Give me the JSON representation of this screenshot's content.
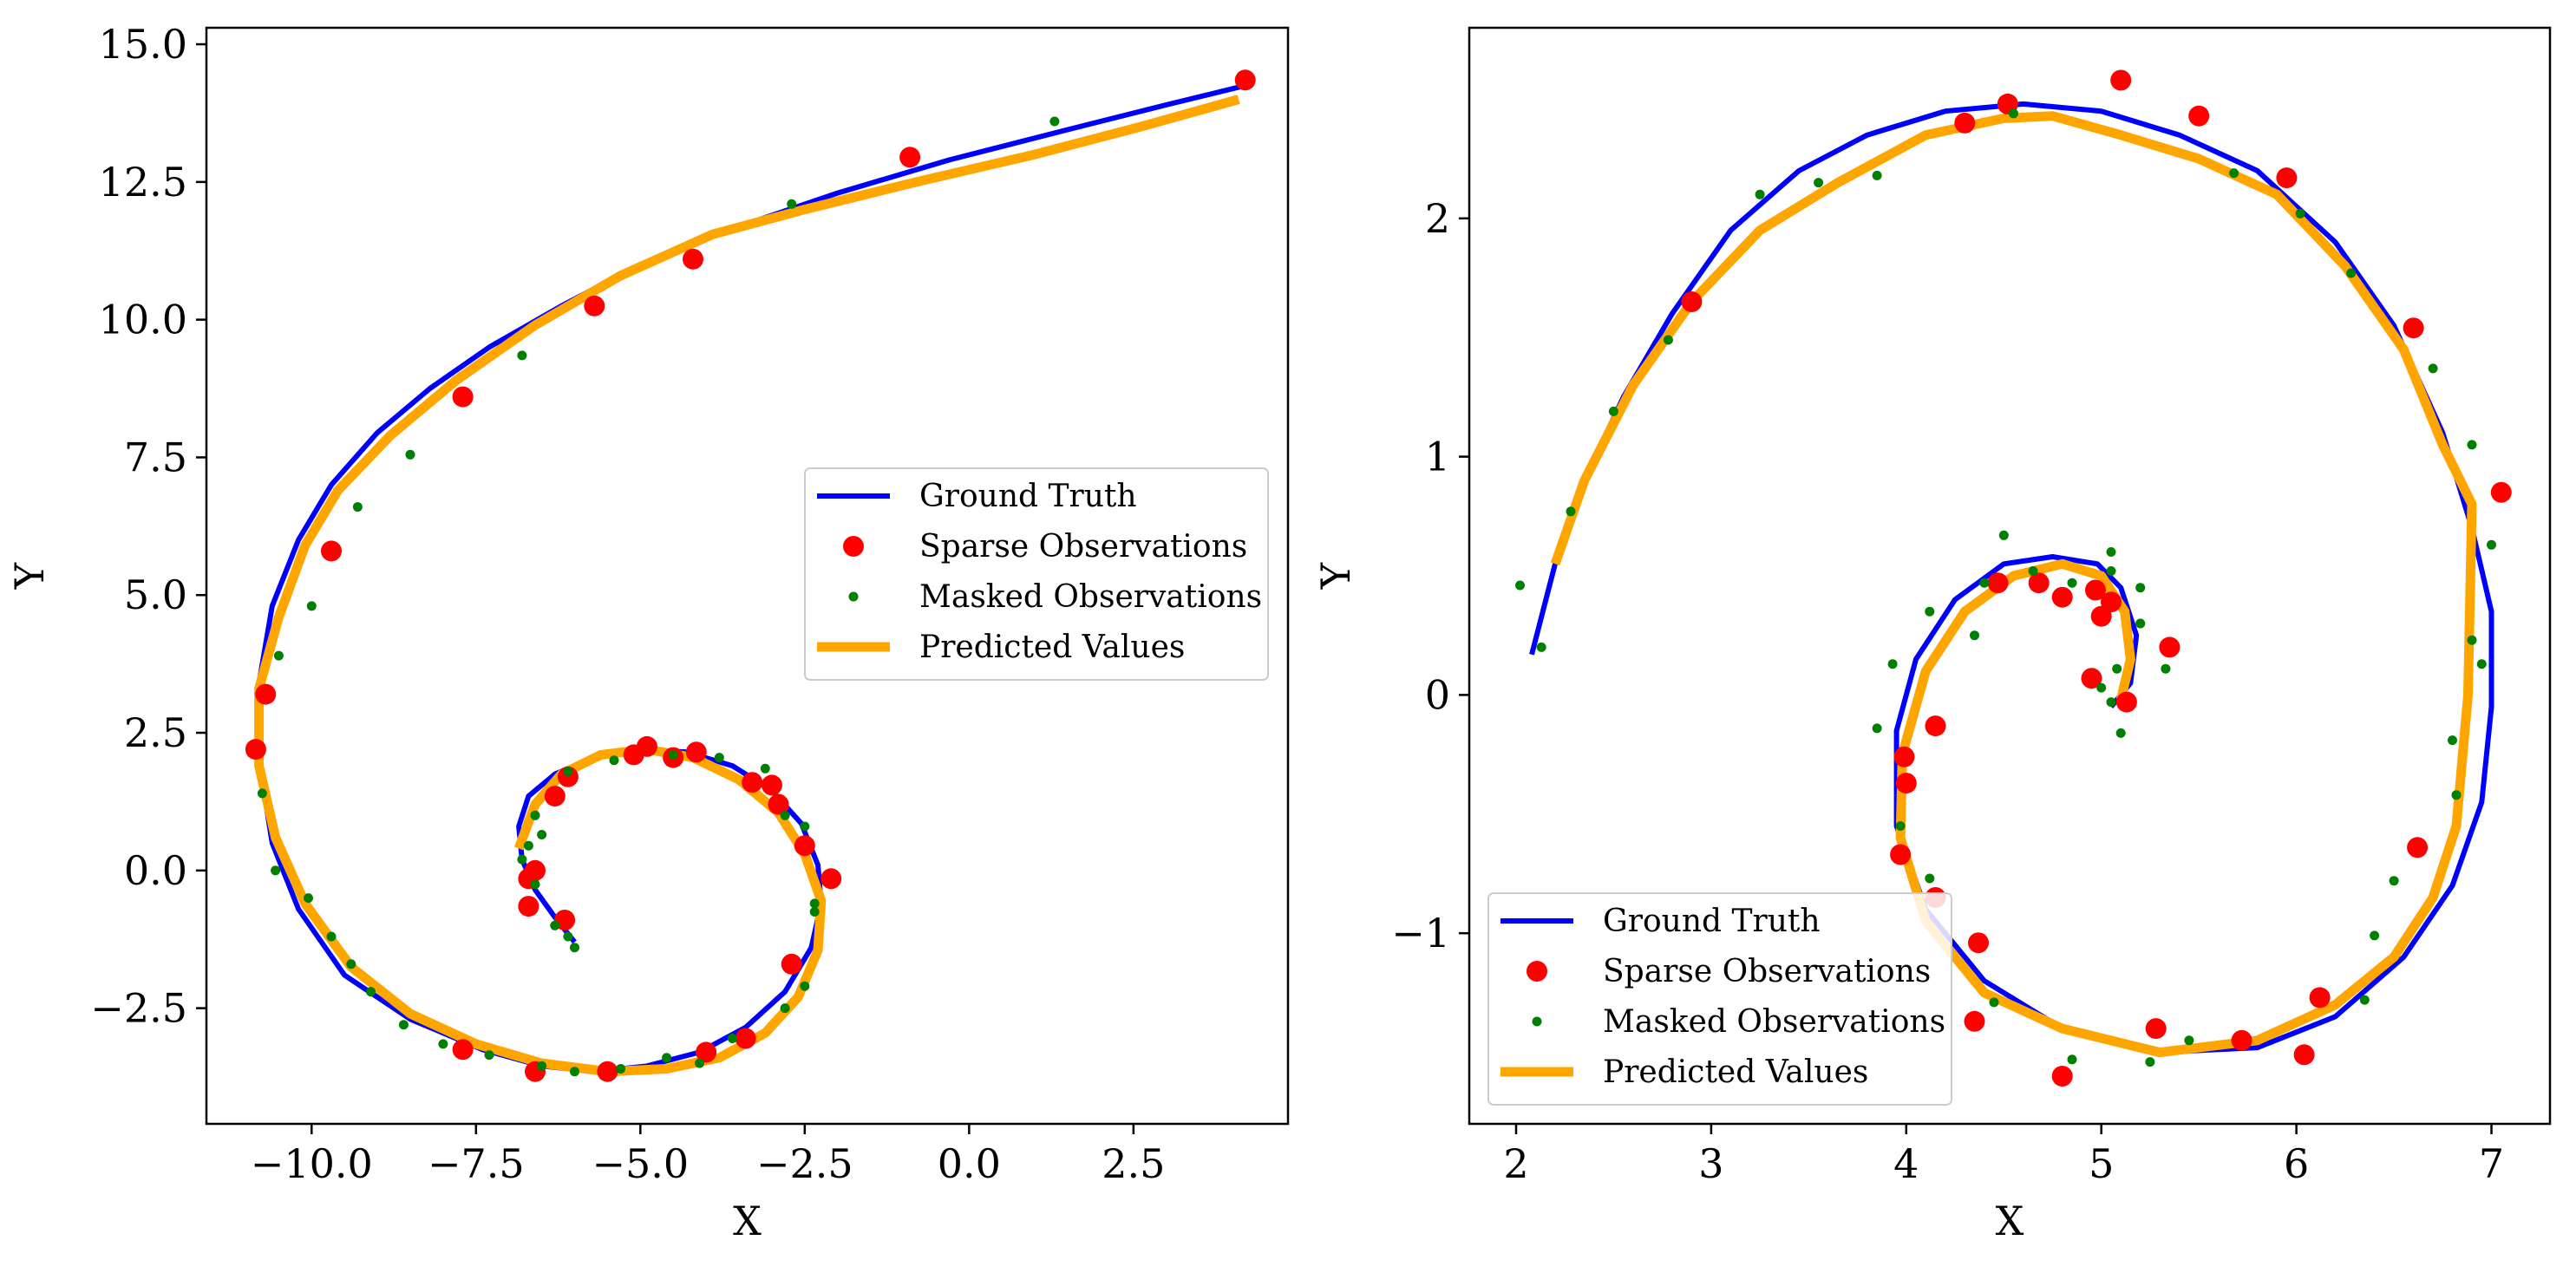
{
  "chart_data": [
    {
      "type": "line",
      "xlabel": "X",
      "ylabel": "Y",
      "xlim": [
        -11.6,
        4.85
      ],
      "ylim": [
        -4.6,
        15.3
      ],
      "xticks": [
        {
          "v": -10.0,
          "label": "−10.0"
        },
        {
          "v": -7.5,
          "label": "−7.5"
        },
        {
          "v": -5.0,
          "label": "−5.0"
        },
        {
          "v": -2.5,
          "label": "−2.5"
        },
        {
          "v": 0.0,
          "label": "0.0"
        },
        {
          "v": 2.5,
          "label": "2.5"
        }
      ],
      "yticks": [
        {
          "v": -2.5,
          "label": "−2.5"
        },
        {
          "v": 0.0,
          "label": "0.0"
        },
        {
          "v": 2.5,
          "label": "2.5"
        },
        {
          "v": 5.0,
          "label": "5.0"
        },
        {
          "v": 7.5,
          "label": "7.5"
        },
        {
          "v": 10.0,
          "label": "10.0"
        },
        {
          "v": 12.5,
          "label": "12.5"
        },
        {
          "v": 15.0,
          "label": "15.0"
        }
      ],
      "legend_position": "center-right",
      "legend": [
        "Ground Truth",
        "Sparse Observations",
        "Masked Observations",
        "Predicted Values"
      ],
      "series": [
        {
          "name": "Ground Truth",
          "kind": "line",
          "color": "#0000ff",
          "x": [
            -6.0,
            -6.3,
            -6.6,
            -6.8,
            -6.85,
            -6.7,
            -6.3,
            -5.7,
            -5.0,
            -4.3,
            -3.6,
            -3.0,
            -2.55,
            -2.3,
            -2.25,
            -2.4,
            -2.8,
            -3.4,
            -4.1,
            -4.9,
            -5.7,
            -6.5,
            -7.4,
            -8.5,
            -9.5,
            -10.2,
            -10.6,
            -10.8,
            -10.8,
            -10.6,
            -10.2,
            -9.7,
            -9.0,
            -8.2,
            -7.3,
            -6.2,
            -5.0,
            -3.6,
            -2.0,
            -0.3,
            1.5,
            3.0,
            4.2
          ],
          "y": [
            -1.3,
            -0.85,
            -0.35,
            0.2,
            0.8,
            1.35,
            1.75,
            2.05,
            2.2,
            2.15,
            1.9,
            1.45,
            0.85,
            0.1,
            -0.6,
            -1.4,
            -2.2,
            -2.85,
            -3.3,
            -3.55,
            -3.65,
            -3.55,
            -3.25,
            -2.7,
            -1.9,
            -0.7,
            0.5,
            2.0,
            3.4,
            4.8,
            6.0,
            7.0,
            7.95,
            8.75,
            9.5,
            10.25,
            11.0,
            11.65,
            12.3,
            12.9,
            13.45,
            13.9,
            14.25
          ]
        },
        {
          "name": "Predicted Values",
          "kind": "line",
          "color": "#ffa500",
          "x": [
            -6.85,
            -6.6,
            -6.2,
            -5.6,
            -4.9,
            -4.2,
            -3.5,
            -2.9,
            -2.5,
            -2.25,
            -2.3,
            -2.6,
            -3.1,
            -3.8,
            -4.6,
            -5.5,
            -6.5,
            -7.5,
            -8.5,
            -9.4,
            -10.1,
            -10.55,
            -10.8,
            -10.8,
            -10.5,
            -10.1,
            -9.6,
            -8.8,
            -7.8,
            -6.6,
            -5.3,
            -3.9,
            -2.5,
            -0.8,
            1.0,
            2.6,
            4.1
          ],
          "y": [
            0.4,
            1.2,
            1.75,
            2.1,
            2.2,
            2.05,
            1.65,
            1.05,
            0.3,
            -0.55,
            -1.45,
            -2.3,
            -2.95,
            -3.4,
            -3.6,
            -3.65,
            -3.5,
            -3.15,
            -2.6,
            -1.75,
            -0.6,
            0.6,
            1.9,
            3.3,
            4.6,
            5.9,
            6.9,
            7.9,
            8.9,
            9.9,
            10.8,
            11.55,
            12.0,
            12.5,
            13.0,
            13.5,
            14.0
          ]
        },
        {
          "name": "Sparse Observations",
          "kind": "scatter",
          "color": "#ff0000",
          "size": "large",
          "x": [
            4.2,
            -0.9,
            -4.2,
            -5.7,
            -7.7,
            -9.7,
            -10.7,
            -10.85,
            -6.7,
            -6.7,
            -6.15,
            -6.6,
            -6.3,
            -6.1,
            -5.1,
            -4.9,
            -4.5,
            -4.15,
            -3.3,
            -3.0,
            -2.9,
            -2.5,
            -2.1,
            -2.7,
            -3.4,
            -4.0,
            -5.5,
            -6.6,
            -7.7
          ],
          "y": [
            14.35,
            12.95,
            11.1,
            10.25,
            8.6,
            5.8,
            3.2,
            2.2,
            -0.15,
            -0.65,
            -0.9,
            0.0,
            1.35,
            1.7,
            2.1,
            2.25,
            2.05,
            2.15,
            1.6,
            1.55,
            1.2,
            0.45,
            -0.15,
            -1.7,
            -3.05,
            -3.3,
            -3.65,
            -3.65,
            -3.25
          ]
        },
        {
          "name": "Masked Observations",
          "kind": "scatter",
          "color": "#008000",
          "size": "small",
          "x": [
            1.3,
            -2.7,
            -6.8,
            -8.5,
            -9.3,
            -10.0,
            -10.5,
            -10.75,
            -10.55,
            -10.05,
            -9.7,
            -9.4,
            -9.1,
            -8.6,
            -8.0,
            -7.3,
            -6.5,
            -6.0,
            -5.3,
            -4.6,
            -4.1,
            -3.6,
            -2.8,
            -2.5,
            -2.35,
            -2.35,
            -2.5,
            -2.8,
            -3.1,
            -3.8,
            -4.5,
            -5.4,
            -6.1,
            -6.6,
            -6.5,
            -6.3,
            -6.1,
            -6.0,
            -6.6,
            -6.7,
            -6.8
          ],
          "y": [
            13.6,
            12.1,
            9.35,
            7.55,
            6.6,
            4.8,
            3.9,
            1.4,
            0.0,
            -0.5,
            -1.2,
            -1.7,
            -2.2,
            -2.8,
            -3.15,
            -3.35,
            -3.55,
            -3.65,
            -3.6,
            -3.4,
            -3.5,
            -3.05,
            -2.5,
            -2.1,
            -0.75,
            -0.6,
            0.8,
            1.0,
            1.85,
            2.05,
            2.1,
            2.0,
            1.8,
            1.0,
            0.65,
            -1.0,
            -1.2,
            -1.4,
            -0.25,
            0.45,
            0.2
          ]
        }
      ]
    },
    {
      "type": "line",
      "xlabel": "X",
      "ylabel": "Y",
      "xlim": [
        1.76,
        7.3
      ],
      "ylim": [
        -1.8,
        2.8
      ],
      "xticks": [
        {
          "v": 2,
          "label": "2"
        },
        {
          "v": 3,
          "label": "3"
        },
        {
          "v": 4,
          "label": "4"
        },
        {
          "v": 5,
          "label": "5"
        },
        {
          "v": 6,
          "label": "6"
        },
        {
          "v": 7,
          "label": "7"
        }
      ],
      "yticks": [
        {
          "v": -1,
          "label": "−1"
        },
        {
          "v": 0,
          "label": "0"
        },
        {
          "v": 1,
          "label": "1"
        },
        {
          "v": 2,
          "label": "2"
        }
      ],
      "legend_position": "lower-left",
      "legend": [
        "Ground Truth",
        "Sparse Observations",
        "Masked Observations",
        "Predicted Values"
      ],
      "series": [
        {
          "name": "Ground Truth",
          "kind": "line",
          "color": "#0000ff",
          "x": [
            2.08,
            2.2,
            2.35,
            2.55,
            2.8,
            3.1,
            3.45,
            3.8,
            4.2,
            4.6,
            5.0,
            5.4,
            5.8,
            6.2,
            6.5,
            6.75,
            6.9,
            7.0,
            7.0,
            6.95,
            6.8,
            6.55,
            6.2,
            5.8,
            5.3,
            4.8,
            4.4,
            4.1,
            3.95,
            3.95,
            4.05,
            4.25,
            4.5,
            4.75,
            4.98,
            5.1,
            5.18,
            5.15,
            5.05
          ],
          "y": [
            0.17,
            0.55,
            0.9,
            1.25,
            1.6,
            1.95,
            2.2,
            2.35,
            2.45,
            2.48,
            2.45,
            2.35,
            2.2,
            1.9,
            1.55,
            1.1,
            0.7,
            0.35,
            -0.05,
            -0.45,
            -0.8,
            -1.1,
            -1.35,
            -1.48,
            -1.5,
            -1.4,
            -1.2,
            -0.9,
            -0.55,
            -0.15,
            0.15,
            0.4,
            0.55,
            0.58,
            0.55,
            0.45,
            0.25,
            0.05,
            -0.05
          ]
        },
        {
          "name": "Predicted Values",
          "kind": "line",
          "color": "#ffa500",
          "x": [
            2.2,
            2.35,
            2.6,
            2.9,
            3.25,
            3.65,
            4.1,
            4.5,
            4.75,
            5.1,
            5.5,
            5.9,
            6.25,
            6.55,
            6.75,
            6.9,
            6.88,
            6.82,
            6.7,
            6.5,
            6.2,
            5.8,
            5.3,
            4.8,
            4.4,
            4.1,
            3.97,
            3.98,
            4.1,
            4.3,
            4.55,
            4.8,
            5.0,
            5.12,
            5.15,
            5.1
          ],
          "y": [
            0.55,
            0.9,
            1.3,
            1.65,
            1.95,
            2.15,
            2.35,
            2.42,
            2.43,
            2.35,
            2.25,
            2.1,
            1.8,
            1.45,
            1.05,
            0.8,
            0.0,
            -0.55,
            -0.85,
            -1.1,
            -1.3,
            -1.45,
            -1.5,
            -1.4,
            -1.25,
            -0.95,
            -0.6,
            -0.25,
            0.1,
            0.35,
            0.5,
            0.55,
            0.5,
            0.35,
            0.15,
            -0.02
          ]
        },
        {
          "name": "Sparse Observations",
          "kind": "scatter",
          "color": "#ff0000",
          "size": "large",
          "x": [
            2.9,
            4.3,
            4.52,
            5.1,
            5.5,
            5.95,
            6.6,
            7.05,
            6.62,
            6.12,
            6.04,
            5.72,
            5.28,
            4.8,
            4.35,
            4.37,
            4.15,
            3.97,
            4.0,
            4.15,
            3.99,
            4.68,
            4.8,
            4.97,
            5.05,
            5.0,
            5.35,
            4.95,
            5.13,
            4.47
          ],
          "y": [
            1.65,
            2.4,
            2.48,
            2.58,
            2.43,
            2.17,
            1.54,
            0.85,
            -0.64,
            -1.27,
            -1.51,
            -1.45,
            -1.4,
            -1.6,
            -1.37,
            -1.04,
            -0.85,
            -0.67,
            -0.37,
            -0.13,
            -0.26,
            0.47,
            0.41,
            0.44,
            0.39,
            0.33,
            0.2,
            0.07,
            -0.03,
            0.47
          ]
        },
        {
          "name": "Masked Observations",
          "kind": "scatter",
          "color": "#008000",
          "size": "small",
          "x": [
            2.02,
            2.13,
            2.28,
            2.5,
            2.78,
            3.25,
            3.55,
            3.85,
            4.55,
            5.68,
            6.02,
            6.28,
            6.7,
            6.9,
            7.0,
            6.9,
            6.95,
            6.8,
            6.82,
            6.5,
            6.4,
            6.35,
            5.45,
            5.25,
            4.85,
            4.45,
            4.12,
            3.97,
            3.85,
            3.93,
            4.12,
            4.35,
            4.4,
            4.5,
            4.65,
            4.85,
            5.05,
            5.05,
            5.05,
            5.1,
            5.08,
            5.0,
            5.2,
            5.2,
            5.2,
            5.33
          ],
          "y": [
            0.46,
            0.2,
            0.77,
            1.19,
            1.49,
            2.1,
            2.15,
            2.18,
            2.44,
            2.19,
            2.02,
            1.77,
            1.37,
            1.05,
            0.63,
            0.23,
            0.13,
            -0.19,
            -0.42,
            -0.78,
            -1.01,
            -1.28,
            -1.45,
            -1.54,
            -1.53,
            -1.29,
            -0.77,
            -0.55,
            -0.14,
            0.13,
            0.35,
            0.25,
            0.47,
            0.67,
            0.52,
            0.47,
            0.52,
            0.6,
            -0.03,
            -0.16,
            0.11,
            0.03,
            0.3,
            0.45,
            0.3,
            0.11
          ]
        }
      ]
    }
  ]
}
